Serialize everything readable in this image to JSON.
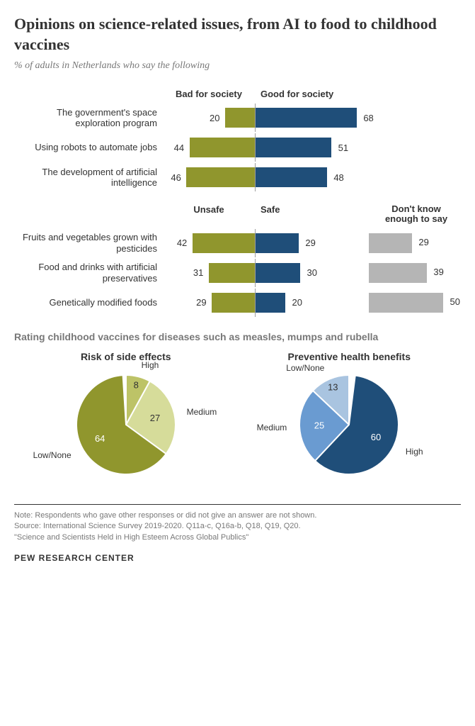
{
  "title": "Opinions on science-related issues, from AI to food to childhood vaccines",
  "subtitle": "% of adults in Netherlands who say the following",
  "section1": {
    "negHeader": "Bad for society",
    "posHeader": "Good for society",
    "negColor": "#90962d",
    "posColor": "#1f4e79",
    "scale": 2.1,
    "rows": [
      {
        "label": "The government's space exploration program",
        "neg": 20,
        "pos": 68
      },
      {
        "label": "Using robots to automate jobs",
        "neg": 44,
        "pos": 51
      },
      {
        "label": "The development of artificial intelligence",
        "neg": 46,
        "pos": 48
      }
    ]
  },
  "section2": {
    "negHeader": "Unsafe",
    "posHeader": "Safe",
    "dkHeader": "Don't know enough to say",
    "negColor": "#90962d",
    "posColor": "#1f4e79",
    "dkColor": "#b5b5b5",
    "scale": 2.1,
    "rows": [
      {
        "label": "Fruits and vegetables grown with pesticides",
        "neg": 42,
        "pos": 29,
        "dk": 29
      },
      {
        "label": "Food and drinks with artificial preservatives",
        "neg": 31,
        "pos": 30,
        "dk": 39
      },
      {
        "label": "Genetically modified foods",
        "neg": 29,
        "pos": 20,
        "dk": 50
      }
    ]
  },
  "vaxTitle": "Rating childhood vaccines for diseases such as measles, mumps and rubella",
  "pie1": {
    "title": "Risk of side effects",
    "slices": [
      {
        "label": "High",
        "value": 8,
        "color": "#bdc367",
        "startAngle": 0,
        "labelPos": "top-right",
        "valInside": false
      },
      {
        "label": "Medium",
        "value": 27,
        "color": "#d6dc9a",
        "startAngle": 29,
        "labelPos": "right",
        "valInside": true
      },
      {
        "label": "Low/None",
        "value": 64,
        "color": "#90962d",
        "startAngle": 127,
        "labelPos": "left",
        "valInside": true
      }
    ]
  },
  "pie2": {
    "title": "Preventive health benefits",
    "slices": [
      {
        "label": "Low/None",
        "value": 13,
        "color": "#a9c4e0",
        "startAngle": 0,
        "labelPos": "top-left",
        "valInside": false
      },
      {
        "label": "Medium",
        "value": 25,
        "color": "#6a9bd1",
        "startAngle": 47,
        "labelPos": "left",
        "valInside": true
      },
      {
        "label": "High",
        "value": 60,
        "color": "#1f4e79",
        "startAngle": 137,
        "labelPos": "right",
        "valInside": true
      }
    ]
  },
  "note": "Note: Respondents who gave other responses or did not give an answer are not shown.",
  "source": "Source: International Science Survey 2019-2020. Q11a-c, Q16a-b, Q18, Q19, Q20.",
  "report": "\"Science and Scientists Held in High Esteem Across Global Publics\"",
  "logo": "PEW RESEARCH CENTER"
}
